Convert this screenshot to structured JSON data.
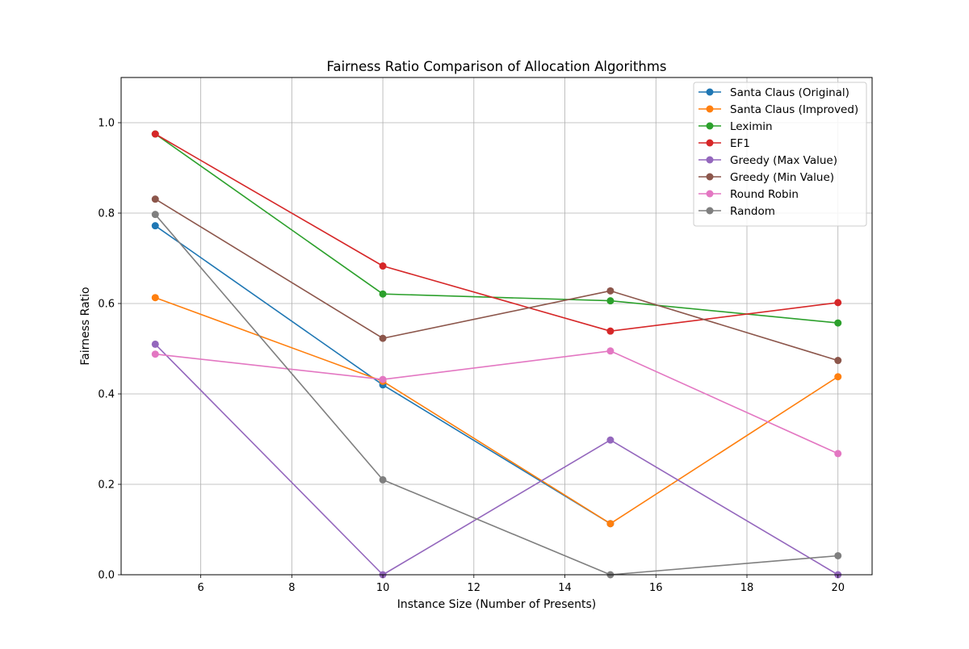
{
  "chart_data": {
    "type": "line",
    "title": "Fairness Ratio Comparison of Allocation Algorithms",
    "xlabel": "Instance Size (Number of Presents)",
    "ylabel": "Fairness Ratio",
    "x": [
      5,
      10,
      15,
      20
    ],
    "xlim": [
      4.25,
      20.75
    ],
    "ylim": [
      0,
      1.1
    ],
    "xticks": [
      6,
      8,
      10,
      12,
      14,
      16,
      18,
      20
    ],
    "yticks": [
      0.0,
      0.2,
      0.4,
      0.6,
      0.8,
      1.0
    ],
    "grid": true,
    "legend_position": "top-right",
    "series": [
      {
        "name": "Santa Claus (Original)",
        "color": "#1f77b4",
        "values": [
          0.772,
          0.42,
          0.113,
          null
        ]
      },
      {
        "name": "Santa Claus (Improved)",
        "color": "#ff7f0e",
        "values": [
          0.613,
          0.428,
          0.113,
          0.438
        ]
      },
      {
        "name": "Leximin",
        "color": "#2ca02c",
        "values": [
          0.975,
          0.621,
          0.606,
          0.557
        ]
      },
      {
        "name": "EF1",
        "color": "#d62728",
        "values": [
          0.975,
          0.683,
          0.539,
          0.602
        ]
      },
      {
        "name": "Greedy (Max Value)",
        "color": "#9467bd",
        "values": [
          0.51,
          0.0,
          0.298,
          0.0
        ]
      },
      {
        "name": "Greedy (Min Value)",
        "color": "#8c564b",
        "values": [
          0.831,
          0.523,
          0.628,
          0.474
        ]
      },
      {
        "name": "Round Robin",
        "color": "#e377c2",
        "values": [
          0.488,
          0.432,
          0.495,
          0.268
        ]
      },
      {
        "name": "Random",
        "color": "#7f7f7f",
        "values": [
          0.797,
          0.21,
          0.0,
          0.042
        ]
      }
    ]
  }
}
